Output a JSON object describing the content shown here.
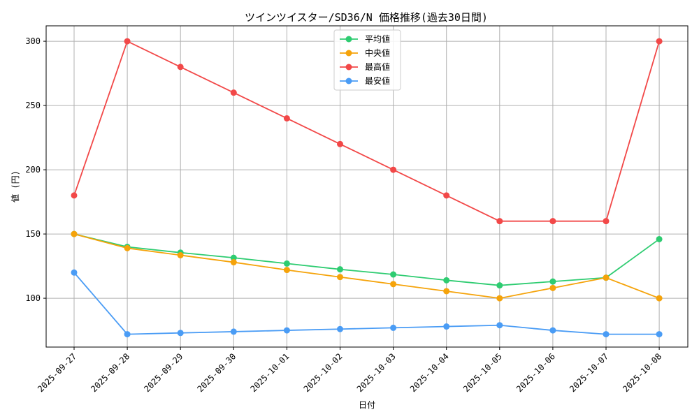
{
  "chart_data": {
    "type": "line",
    "title": "ツインツイスター/SD36/N 価格推移(過去30日間)",
    "xlabel": "日付",
    "ylabel": "値 (円)",
    "ylim": [
      62,
      312
    ],
    "yticks": [
      100,
      150,
      200,
      250,
      300
    ],
    "grid": true,
    "legend_position": "top-center",
    "categories": [
      "2025-09-27",
      "2025-09-28",
      "2025-09-29",
      "2025-09-30",
      "2025-10-01",
      "2025-10-02",
      "2025-10-03",
      "2025-10-04",
      "2025-10-05",
      "2025-10-06",
      "2025-10-07",
      "2025-10-08"
    ],
    "series": [
      {
        "name": "平均値",
        "color": "#2ecc71",
        "values": [
          150,
          140,
          135.5,
          131.5,
          127,
          122.5,
          118.5,
          114,
          110,
          113,
          116,
          146
        ]
      },
      {
        "name": "中央値",
        "color": "#f5a30a",
        "values": [
          150,
          139,
          133.5,
          128,
          122,
          116.5,
          111,
          105.5,
          100,
          108,
          116,
          100
        ]
      },
      {
        "name": "最高値",
        "color": "#f24848",
        "values": [
          180,
          300,
          280,
          260,
          240,
          220,
          200,
          180,
          160,
          160,
          160,
          300
        ]
      },
      {
        "name": "最安値",
        "color": "#4a9cf5",
        "values": [
          120,
          72,
          73,
          74,
          75,
          76,
          77,
          78,
          79,
          75,
          72,
          72
        ]
      }
    ]
  }
}
